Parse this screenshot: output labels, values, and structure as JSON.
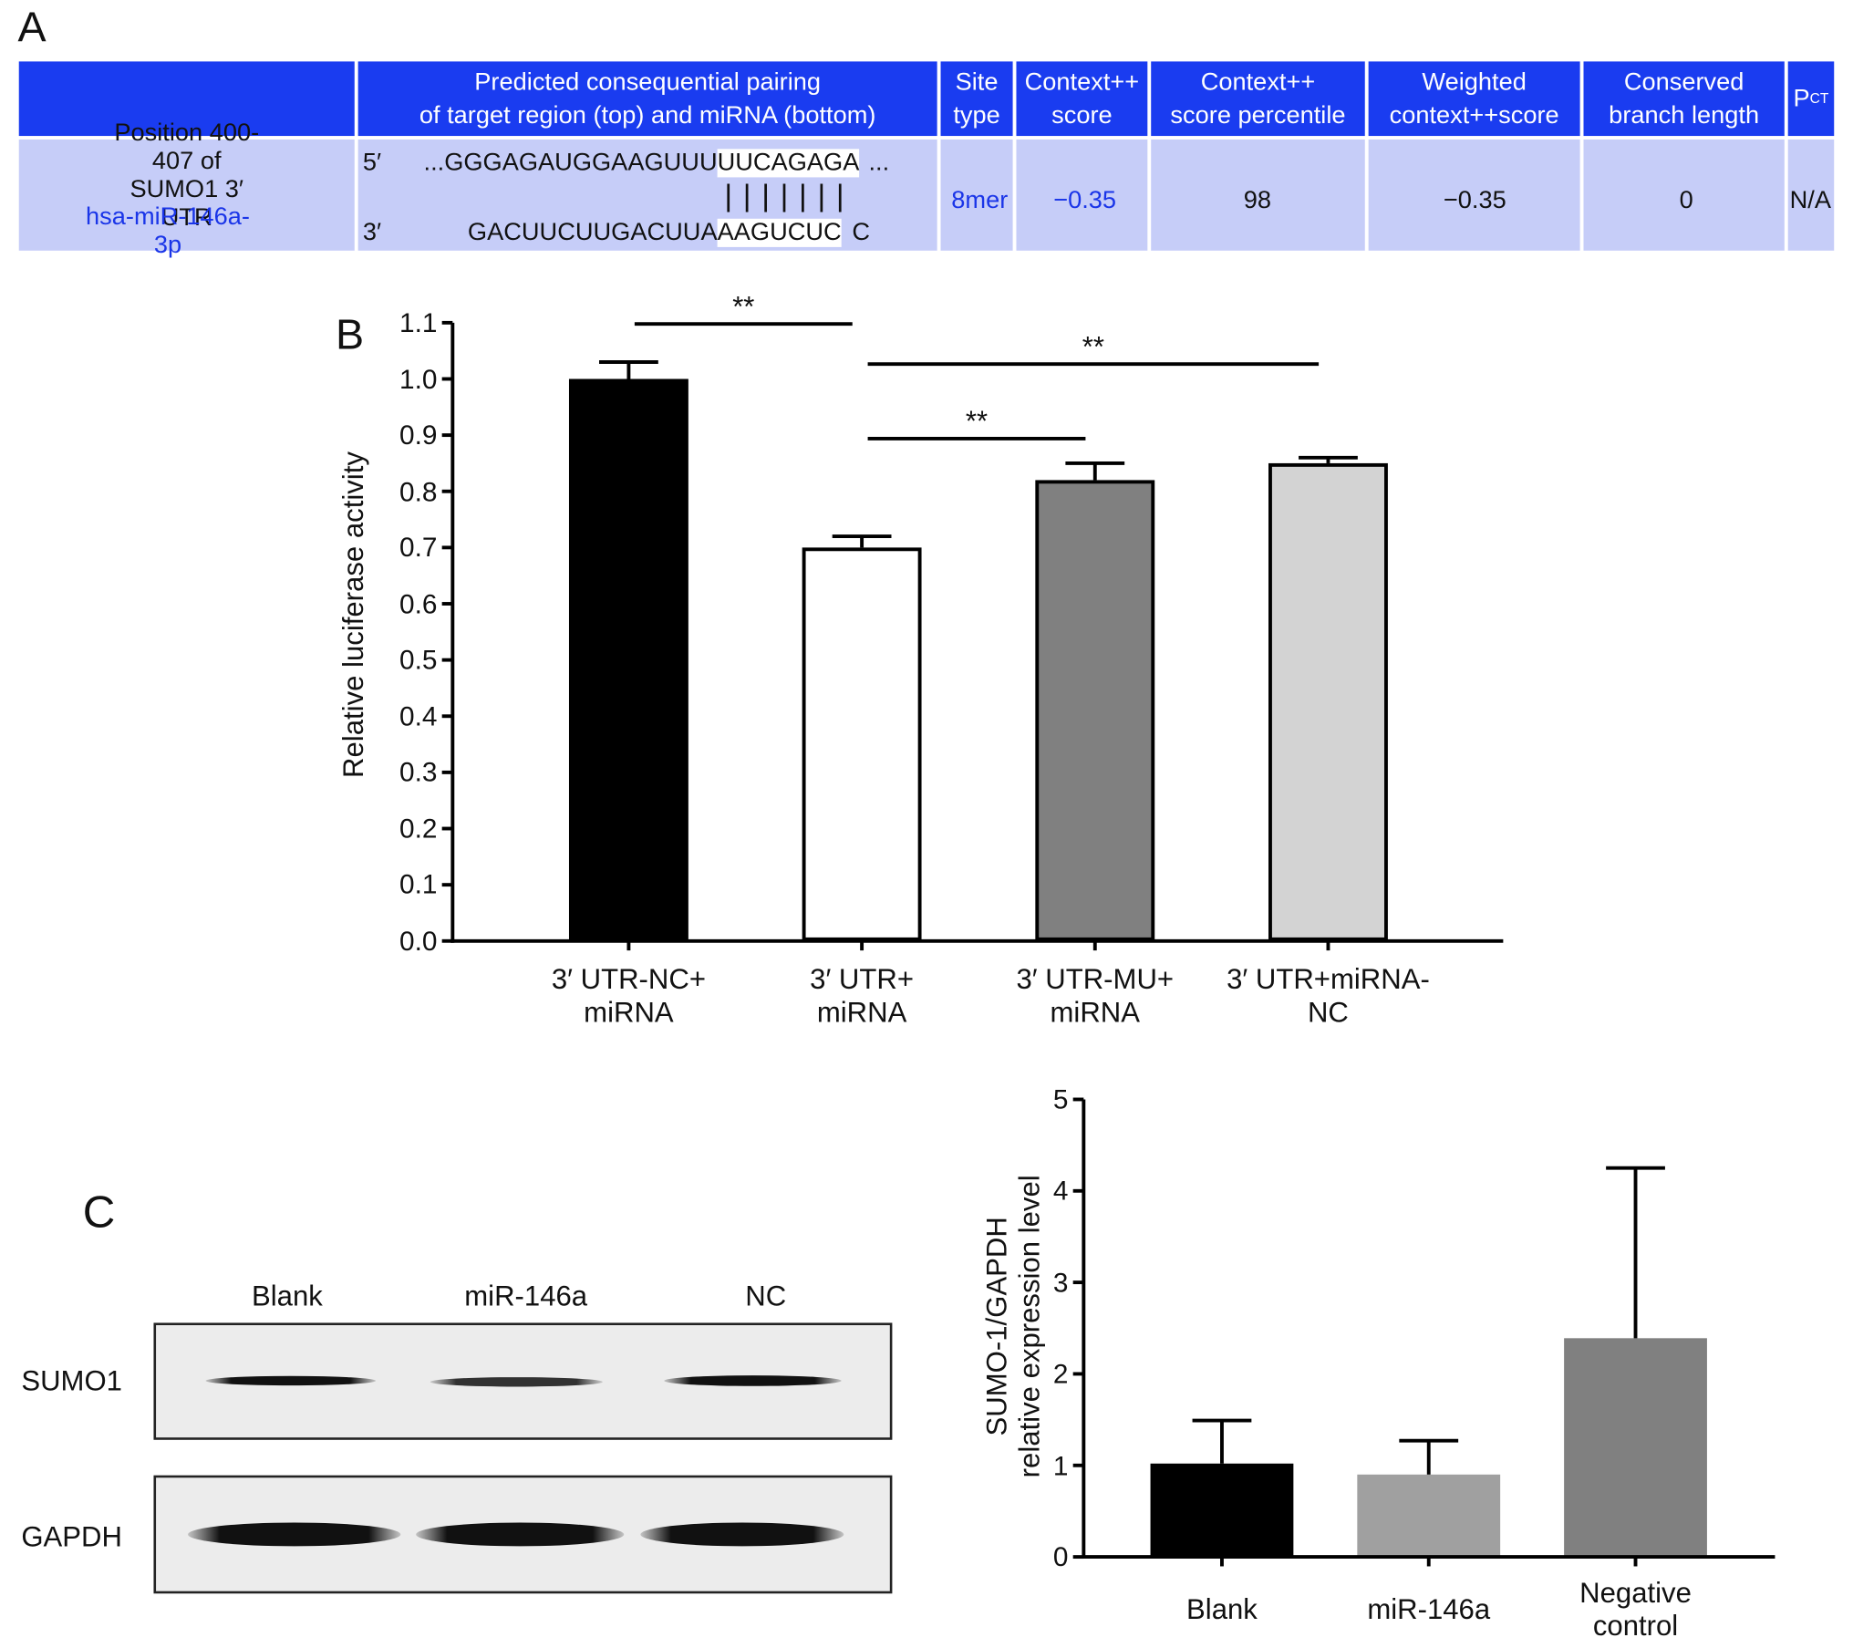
{
  "panels": [
    "A",
    "B",
    "C"
  ],
  "table": {
    "header": [
      "Predicted consequential pairing\nof target region (top) and miRNA (bottom)",
      "Site\ntype",
      "Context++\nscore",
      "Context++\nscore percentile",
      "Weighted\ncontext++score",
      "Conserved\nbranch length",
      {
        "text": "P",
        "sub": "CT"
      }
    ],
    "row": {
      "site": "Position 400-407 of\nSUMO1 3′ UTR",
      "mirna": "hsa-miR-146a-3p",
      "pairing": {
        "top_end": "5′",
        "top": "...GGGAGAUGGAAGUUU",
        "top_seed": "UUCAGAGA",
        "top_tail": "...",
        "bonds": "|||||||",
        "bottom_end": "3′",
        "bottom": "GACUUCUUGACUUA",
        "bottom_seed": "AAGUCUC",
        "bottom_tail": "C"
      },
      "site_type": "8mer",
      "context_score": "−0.35",
      "percentile": 98,
      "weighted": "−0.35",
      "branch_length": 0,
      "pct": "N/A"
    }
  },
  "blot": {
    "lanes": [
      "Blank",
      "miR-146a",
      "NC"
    ],
    "proteins": [
      "SUMO1",
      "GAPDH"
    ]
  },
  "chart_data": [
    {
      "type": "bar",
      "ylabel": "Relative luciferase activity",
      "categories": [
        "3′ UTR-NC+\nmiRNA",
        "3′ UTR+\nmiRNA",
        "3′ UTR-MU+\nmiRNA",
        "3′ UTR+miRNA-\nNC"
      ],
      "values": [
        1.0,
        0.7,
        0.82,
        0.85
      ],
      "errors": [
        0.03,
        0.02,
        0.03,
        0.01
      ],
      "colors": [
        "#000000",
        "#ffffff",
        "#808080",
        "#d3d3d3"
      ],
      "ylim": [
        0,
        1.1
      ],
      "yticks": [
        {
          "value": 0,
          "label": "0.0"
        },
        0.1,
        0.2,
        0.3,
        0.4,
        0.5,
        0.6,
        0.7,
        0.8,
        0.9,
        {
          "value": 1,
          "label": "1.0"
        },
        1.1
      ],
      "annotations": [
        {
          "text": "**",
          "from": 0,
          "to": 1
        },
        {
          "text": "**",
          "from": 1,
          "to": 3
        },
        {
          "text": "**",
          "from": 1,
          "to": 2
        }
      ]
    },
    {
      "type": "bar",
      "ylabel": "SUMO-1/GAPDH\nrelative expression level",
      "categories": [
        "Blank",
        "miR-146a",
        "Negative\ncontrol"
      ],
      "values": [
        1.02,
        0.9,
        2.39
      ],
      "errors": [
        0.47,
        0.37,
        1.86
      ],
      "colors": [
        "#000000",
        "#a0a0a0",
        "#808080"
      ],
      "ylim": [
        0,
        5
      ],
      "yticks": [
        0,
        1,
        2,
        3,
        4,
        5
      ]
    }
  ]
}
